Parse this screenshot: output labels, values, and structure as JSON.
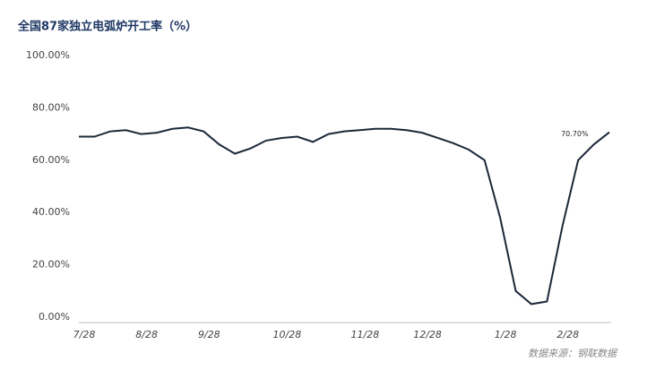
{
  "chart_data": {
    "type": "line",
    "title": "全国87家独立电弧炉开工率（%）",
    "source": "数据来源：钢联数据",
    "annotation": "70.70%",
    "categories": [
      "7/28",
      null,
      null,
      null,
      "8/28",
      null,
      null,
      null,
      "9/28",
      null,
      null,
      null,
      null,
      "10/28",
      null,
      null,
      null,
      null,
      "11/28",
      null,
      null,
      null,
      "12/28",
      null,
      null,
      null,
      null,
      "1/28",
      null,
      null,
      null,
      "2/28",
      null,
      null,
      null
    ],
    "series": [
      {
        "name": "开工率",
        "color": "#1b2838",
        "values": [
          69,
          69,
          71,
          71.5,
          70,
          70.5,
          72,
          72.5,
          71,
          66,
          62.5,
          64.5,
          67.5,
          68.5,
          69,
          67,
          70,
          71,
          71.5,
          72,
          72,
          71.5,
          70.5,
          68.5,
          66.5,
          64,
          60,
          38,
          10,
          5,
          6,
          35,
          60,
          66,
          70.7
        ]
      }
    ],
    "ylim": [
      0,
      100
    ],
    "yticks": [
      {
        "value": 0,
        "label": "0.00%"
      },
      {
        "value": 20,
        "label": "20.00%"
      },
      {
        "value": 40,
        "label": "40.00%"
      },
      {
        "value": 60,
        "label": "60.00%"
      },
      {
        "value": 80,
        "label": "80.00%"
      },
      {
        "value": 100,
        "label": "100.00%"
      }
    ],
    "grid": false
  }
}
